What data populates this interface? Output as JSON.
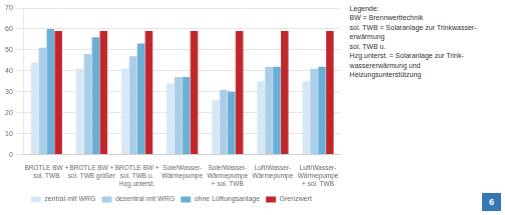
{
  "chart_data": {
    "type": "bar",
    "categories": [
      "BROTLE BW +\nsol. TWB",
      "BROTLE BW +\nsol. TWB größer",
      "BROTLE BW +\nsol. TWB u.\nHzg.unterst.",
      "Sole/Wasser-\nWärmepumpe",
      "Sole/Wasser-\nWärmepumpe\n+ sol. TWB",
      "Luft/Wasser-\nWärmepumpe",
      "Luft/Wasser-\nWärmepumpe\n+ sol. TWB"
    ],
    "series": [
      {
        "name": "zentral mit WRG",
        "color": "#d6e8f5",
        "values": [
          44,
          41,
          41,
          34,
          26,
          35,
          35
        ]
      },
      {
        "name": "dezentral mit WRG",
        "color": "#aacde8",
        "values": [
          51,
          48,
          47,
          37,
          31,
          42,
          41
        ]
      },
      {
        "name": "ohne Lüftungsanlage",
        "color": "#6aafd6",
        "values": [
          60,
          56,
          53,
          37,
          30,
          42,
          42
        ]
      },
      {
        "name": "Grenzwert",
        "color": "#c0272d",
        "values": [
          59,
          59,
          59,
          59,
          59,
          59,
          59
        ]
      }
    ],
    "ylim": [
      0,
      70
    ],
    "yticks": [
      0,
      10,
      20,
      30,
      40,
      50,
      60,
      70
    ],
    "grid": true,
    "legend": "bottom",
    "annotations": [
      "Legende:",
      "BW = Brennwerttechnik",
      "sol. TWB = Solaranlage zur Trinkwasser-",
      "erwärmung",
      "sol. TWB u.",
      "Hzg.unterst. = Solaranlage zur Trink-",
      "wassererwärmung und",
      "Heizungsunterstützung",
      "6"
    ]
  }
}
